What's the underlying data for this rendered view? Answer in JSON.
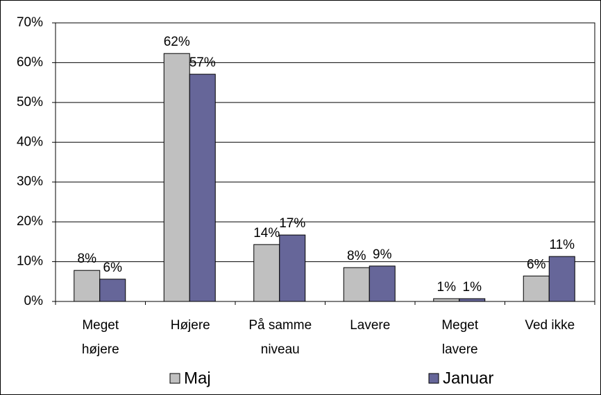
{
  "chart_data": {
    "type": "bar",
    "categories": [
      [
        "Meget",
        "højere"
      ],
      [
        "Højere"
      ],
      [
        "På samme",
        "niveau"
      ],
      [
        "Lavere"
      ],
      [
        "Meget",
        "lavere"
      ],
      [
        "Ved ikke"
      ]
    ],
    "series": [
      {
        "name": "Maj",
        "color": "#c0c0c0",
        "values": [
          7.8,
          62.3,
          14.3,
          8.5,
          0.7,
          6.4
        ],
        "value_labels": [
          "8%",
          "62%",
          "14%",
          "8%",
          "1%",
          "6%"
        ]
      },
      {
        "name": "Januar",
        "color": "#666699",
        "values": [
          5.6,
          57.1,
          16.7,
          8.9,
          0.7,
          11.3
        ],
        "value_labels": [
          "6%",
          "57%",
          "17%",
          "9%",
          "1%",
          "11%"
        ]
      }
    ],
    "ylim": [
      0,
      70
    ],
    "yticks": [
      {
        "value": 0,
        "label": "0%"
      },
      {
        "value": 10,
        "label": "10%"
      },
      {
        "value": 20,
        "label": "20%"
      },
      {
        "value": 30,
        "label": "30%"
      },
      {
        "value": 40,
        "label": "40%"
      },
      {
        "value": 50,
        "label": "50%"
      },
      {
        "value": 60,
        "label": "60%"
      },
      {
        "value": 70,
        "label": "70%"
      }
    ],
    "grid": true,
    "legend": "bottom"
  }
}
